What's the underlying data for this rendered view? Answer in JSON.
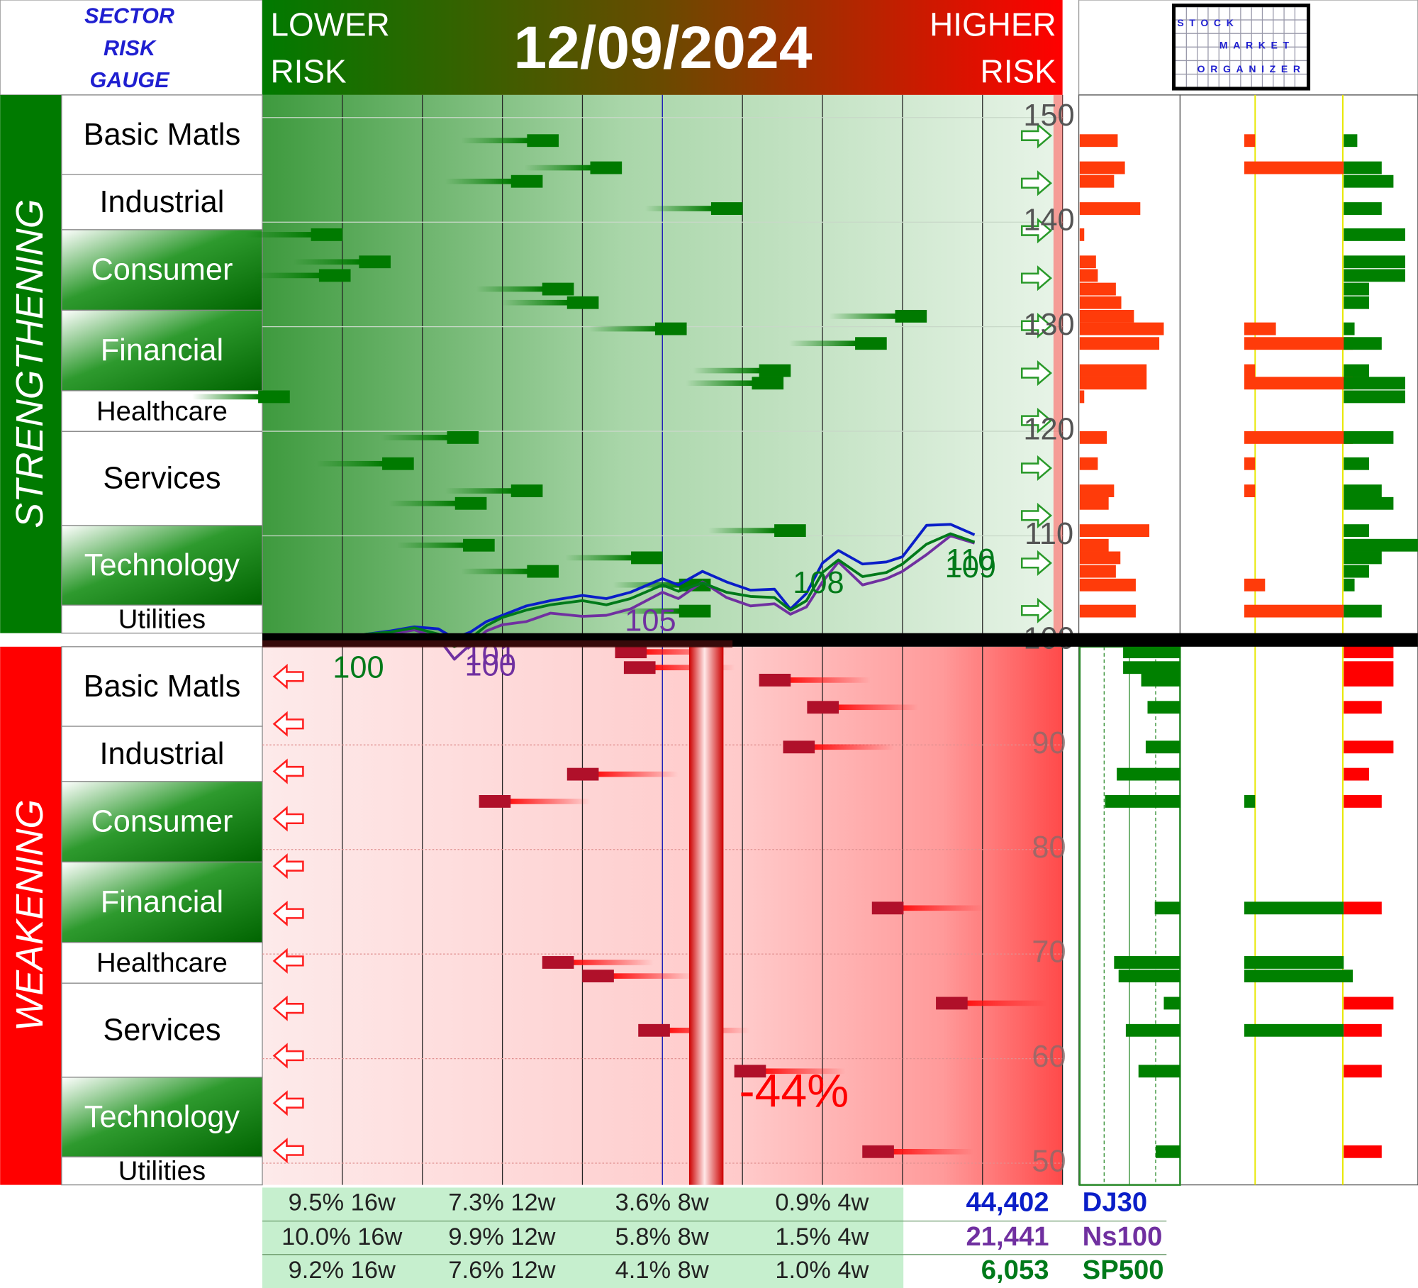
{
  "header": {
    "gauge_title": [
      "SECTOR",
      "RISK",
      "GAUGE"
    ],
    "lower": [
      "LOWER",
      "RISK"
    ],
    "higher": [
      "HIGHER",
      "RISK"
    ],
    "date": "12/09/2024",
    "logo": [
      "STOCK",
      "MARKET",
      "ORGANIZER"
    ]
  },
  "sections": [
    {
      "title": "STRENGTHENING",
      "sectors": [
        {
          "name": "Basic Matls",
          "highlight": false
        },
        {
          "name": "Industrial",
          "highlight": false
        },
        {
          "name": "Consumer",
          "highlight": true
        },
        {
          "name": "Financial",
          "highlight": true
        },
        {
          "name": "Healthcare",
          "highlight": false
        },
        {
          "name": "Services",
          "highlight": false
        },
        {
          "name": "Technology",
          "highlight": true
        },
        {
          "name": "Utilities",
          "highlight": false
        }
      ]
    },
    {
      "title": "WEAKENING",
      "sectors": [
        {
          "name": "Basic Matls",
          "highlight": false
        },
        {
          "name": "Industrial",
          "highlight": false
        },
        {
          "name": "Consumer",
          "highlight": true
        },
        {
          "name": "Financial",
          "highlight": true
        },
        {
          "name": "Healthcare",
          "highlight": false
        },
        {
          "name": "Services",
          "highlight": false
        },
        {
          "name": "Technology",
          "highlight": true
        },
        {
          "name": "Utilities",
          "highlight": false
        }
      ]
    }
  ],
  "chart_data": {
    "type": "line",
    "xlim": [
      0,
      10
    ],
    "xticks": [
      1,
      2,
      3,
      4,
      5,
      6,
      7,
      8,
      9,
      10
    ],
    "ylim": [
      50,
      150
    ],
    "yticks": [
      50,
      60,
      70,
      80,
      90,
      100,
      110,
      120,
      130,
      140,
      150
    ],
    "grid": true,
    "x": [
      1,
      1.3,
      1.6,
      1.9,
      2.2,
      2.4,
      2.6,
      2.8,
      3.0,
      3.3,
      3.6,
      4.0,
      4.3,
      4.6,
      5.0,
      5.2,
      5.5,
      5.8,
      6.1,
      6.4,
      6.6,
      6.8,
      7.0,
      7.2,
      7.5,
      7.8,
      8.0,
      8.3,
      8.6,
      8.9
    ],
    "series": [
      {
        "name": "DJ30",
        "color": "#0a1ec8",
        "values": [
          100,
          100.6,
          100.9,
          101.3,
          101.1,
          100.2,
          100.8,
          101.8,
          102.4,
          103.3,
          103.8,
          104.3,
          104.0,
          104.6,
          105.9,
          105.3,
          106.6,
          105.6,
          104.8,
          104.9,
          103.0,
          104.5,
          107.4,
          108.6,
          107.3,
          107.5,
          108.0,
          111.0,
          111.1,
          110.1
        ]
      },
      {
        "name": "Ns100",
        "color": "#7030a0",
        "values": [
          100,
          99.8,
          100.6,
          101.0,
          100.2,
          98.2,
          99.6,
          100.9,
          101.5,
          101.8,
          102.6,
          102.3,
          102.4,
          103.0,
          104.6,
          104.0,
          105.6,
          104.1,
          103.3,
          103.5,
          102.5,
          103.2,
          105.6,
          107.5,
          105.3,
          105.9,
          106.6,
          108.2,
          110.0,
          109.3
        ]
      },
      {
        "name": "SP500",
        "color": "#007a1a",
        "values": [
          100,
          100.6,
          100.8,
          101.2,
          100.6,
          99.4,
          100.2,
          101.4,
          102.2,
          102.9,
          103.4,
          103.8,
          103.4,
          104.0,
          105.3,
          104.7,
          105.5,
          104.6,
          104.2,
          104.1,
          102.9,
          103.8,
          106.5,
          107.7,
          106.1,
          106.5,
          107.3,
          109.2,
          110.2,
          109.4
        ]
      }
    ],
    "annotations": [
      {
        "text": "100",
        "x": 1.2,
        "y": 97.2,
        "color": "#007a1a"
      },
      {
        "text": "101",
        "x": 2.85,
        "y": 98.4,
        "color": "#7030a0"
      },
      {
        "text": "100",
        "x": 2.85,
        "y": 97.4,
        "color": "#7030a0"
      },
      {
        "text": "105",
        "x": 4.85,
        "y": 101.7,
        "color": "#7030a0"
      },
      {
        "text": "108",
        "x": 6.95,
        "y": 105.3,
        "color": "#007a1a"
      },
      {
        "text": "110",
        "x": 8.85,
        "y": 107.5,
        "color": "#007a1a"
      },
      {
        "text": "109",
        "x": 8.85,
        "y": 106.8,
        "color": "#007a1a"
      }
    ],
    "drawdown": "-44%",
    "dashes": [
      {
        "name": "strengthening",
        "color": "#007a00",
        "x": [
          3.5,
          4.29,
          3.3,
          5.8,
          0.8,
          1.4,
          0.9,
          3.69,
          4.0,
          5.1,
          8.1,
          7.6,
          6.4,
          6.31,
          0.14,
          2.5,
          1.69,
          3.3,
          2.6,
          6.59,
          2.7,
          4.8,
          3.5,
          5.4,
          5.4
        ],
        "values": [
          147.8,
          145.2,
          143.9,
          141.3,
          138.8,
          136.2,
          134.9,
          133.6,
          132.3,
          129.8,
          131.0,
          128.4,
          125.8,
          124.6,
          123.3,
          119.4,
          116.9,
          114.3,
          113.1,
          110.5,
          109.1,
          107.9,
          106.6,
          105.3,
          102.8
        ]
      },
      {
        "name": "weakening",
        "color": "#b0102a",
        "x": [
          4.6,
          4.71,
          6.4,
          7.0,
          6.7,
          4.0,
          2.9,
          7.81,
          3.69,
          4.19,
          8.61,
          4.89,
          6.09,
          7.69
        ],
        "values": [
          98.9,
          97.4,
          96.2,
          93.6,
          89.8,
          87.2,
          84.6,
          74.4,
          69.2,
          67.9,
          65.3,
          62.7,
          58.8,
          51.1
        ]
      }
    ],
    "side_bars": [
      {
        "a": [
          42,
          50,
          38,
          67,
          5,
          18,
          20,
          40,
          46,
          93,
          60,
          88,
          74,
          74,
          5,
          30,
          20,
          38,
          32,
          77,
          32,
          45,
          40,
          62,
          62
        ],
        "b": [
          12,
          110,
          0,
          0,
          0,
          0,
          0,
          0,
          0,
          35,
          0,
          120,
          12,
          120,
          0,
          120,
          12,
          12,
          0,
          0,
          0,
          0,
          0,
          23,
          110
        ],
        "c": [
          15,
          42,
          55,
          42,
          68,
          68,
          68,
          28,
          28,
          12,
          0,
          42,
          28,
          68,
          68,
          55,
          28,
          42,
          55,
          28,
          82,
          42,
          28,
          12,
          42
        ]
      },
      {
        "a": [
          63,
          63,
          43,
          36,
          38,
          70,
          83,
          28,
          73,
          68,
          18,
          60,
          46,
          27
        ],
        "b": [
          0,
          0,
          0,
          0,
          0,
          0,
          12,
          110,
          110,
          120,
          0,
          110,
          0,
          0
        ],
        "c": [
          55,
          55,
          55,
          42,
          55,
          28,
          42,
          42,
          0,
          0,
          55,
          42,
          42,
          42
        ]
      }
    ]
  },
  "footer": {
    "rows": [
      {
        "cells": [
          "9.5% 16w",
          "7.3% 12w",
          "3.6% 8w",
          "0.9% 4w"
        ],
        "value": "44,402"
      },
      {
        "cells": [
          "10.0% 16w",
          "9.9% 12w",
          "5.8% 8w",
          "1.5% 4w"
        ],
        "value": "21,441"
      },
      {
        "cells": [
          "9.2% 16w",
          "7.6% 12w",
          "4.1% 8w",
          "1.0% 4w"
        ],
        "value": "6,053"
      }
    ]
  }
}
